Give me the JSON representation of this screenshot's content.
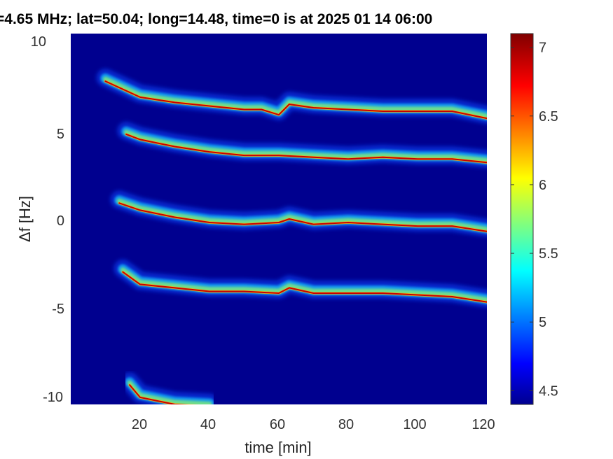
{
  "chart_data": {
    "type": "heatmap",
    "title": "=4.65 MHz;  lat=50.04; long=14.48, time=0 is at 2025 01 14 06:00",
    "xlabel": "time [min]",
    "ylabel": "Δf [Hz]",
    "xlim": [
      0,
      120
    ],
    "ylim": [
      -10.5,
      10.5
    ],
    "x_ticks": [
      "20",
      "40",
      "60",
      "80",
      "100",
      "120"
    ],
    "y_ticks": [
      "10",
      "5",
      "0",
      "-5",
      "-10"
    ],
    "colorbar": {
      "colormap": "jet",
      "range": [
        4.4,
        7.1
      ],
      "ticks": [
        "7",
        "6.5",
        "6",
        "5.5",
        "5",
        "4.5"
      ]
    },
    "background_color": "#00008f",
    "traces": [
      {
        "name": "",
        "x": [
          10,
          20,
          30,
          40,
          50,
          55,
          60,
          63,
          70,
          80,
          90,
          100,
          110,
          120
        ],
        "y": [
          7.8,
          6.9,
          6.6,
          6.4,
          6.2,
          6.2,
          5.9,
          6.5,
          6.3,
          6.2,
          6.1,
          6.1,
          6.1,
          5.7
        ]
      },
      {
        "name": "",
        "x": [
          16,
          20,
          25,
          30,
          40,
          50,
          60,
          70,
          80,
          90,
          100,
          110,
          120
        ],
        "y": [
          4.8,
          4.5,
          4.3,
          4.1,
          3.8,
          3.6,
          3.6,
          3.5,
          3.4,
          3.5,
          3.4,
          3.4,
          3.2
        ]
      },
      {
        "name": "",
        "x": [
          14,
          20,
          30,
          40,
          50,
          60,
          63,
          70,
          80,
          90,
          100,
          110,
          120
        ],
        "y": [
          0.9,
          0.5,
          0.1,
          -0.2,
          -0.3,
          -0.2,
          0.0,
          -0.3,
          -0.2,
          -0.3,
          -0.4,
          -0.4,
          -0.7
        ]
      },
      {
        "name": "",
        "x": [
          15,
          20,
          30,
          40,
          50,
          60,
          63,
          70,
          80,
          90,
          100,
          110,
          120
        ],
        "y": [
          -3.0,
          -3.7,
          -3.9,
          -4.1,
          -4.1,
          -4.2,
          -3.9,
          -4.2,
          -4.2,
          -4.2,
          -4.3,
          -4.4,
          -4.7
        ]
      },
      {
        "name": "",
        "x": [
          17,
          20,
          25,
          30,
          40
        ],
        "y": [
          -9.4,
          -10.1,
          -10.3,
          -10.5,
          -10.6
        ]
      }
    ]
  }
}
